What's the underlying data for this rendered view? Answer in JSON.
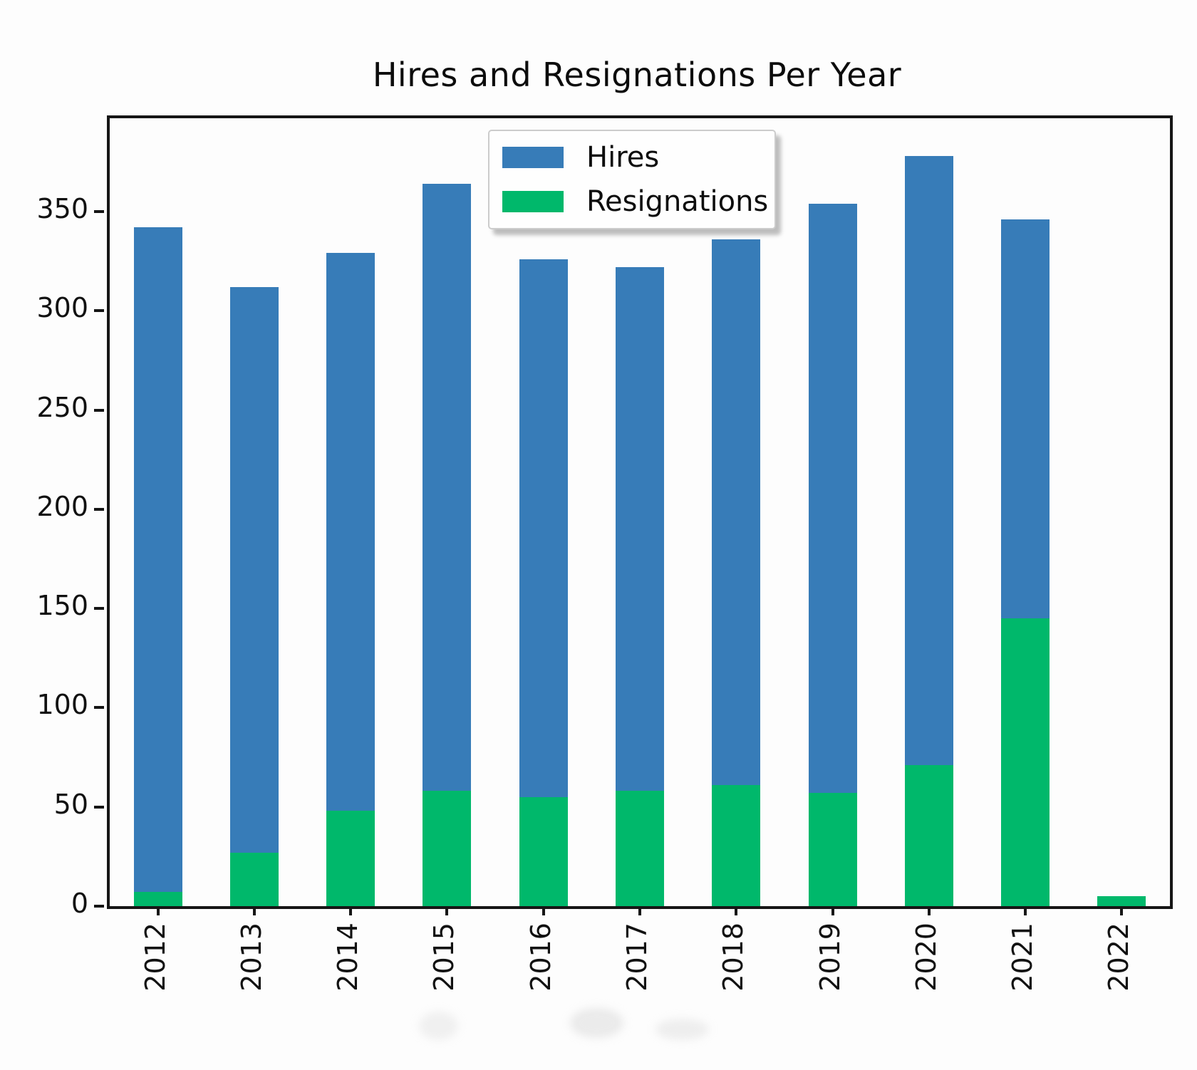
{
  "title": "Hires and Resignations Per Year",
  "chart_data": {
    "type": "bar",
    "title": "Hires and Resignations Per Year",
    "categories": [
      "2012",
      "2013",
      "2014",
      "2015",
      "2016",
      "2017",
      "2018",
      "2019",
      "2020",
      "2021",
      "2022"
    ],
    "series": [
      {
        "name": "Hires",
        "color": "#377cb8",
        "values": [
          342,
          312,
          329,
          364,
          326,
          322,
          336,
          354,
          378,
          346,
          0
        ]
      },
      {
        "name": "Resignations",
        "color": "#00b86b",
        "values": [
          7,
          27,
          48,
          58,
          55,
          58,
          61,
          57,
          71,
          145,
          5
        ]
      }
    ],
    "bar_style": "overlaid-from-zero",
    "xlabel": "",
    "ylabel": "",
    "yticks": [
      0,
      50,
      100,
      150,
      200,
      250,
      300,
      350
    ],
    "ylim": [
      0,
      397
    ],
    "grid": false,
    "x_tick_label_rotation": 90,
    "legend_position": "upper center"
  },
  "legend": {
    "items": [
      {
        "label": "Hires",
        "color": "#377cb8"
      },
      {
        "label": "Resignations",
        "color": "#00b86b"
      }
    ]
  }
}
